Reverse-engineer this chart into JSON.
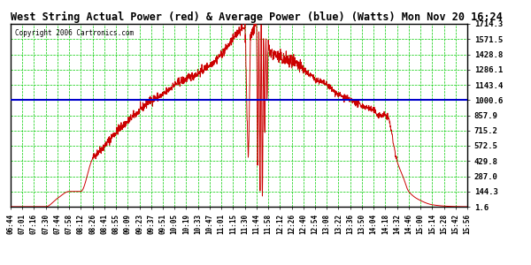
{
  "title": "West String Actual Power (red) & Average Power (blue) (Watts) Mon Nov 20 16:24",
  "copyright": "Copyright 2006 Cartronics.com",
  "bg_color": "#ffffff",
  "grid_color": "#00cc00",
  "line_color_actual": "#cc0000",
  "line_color_avg": "#0000cc",
  "avg_power": 1000.6,
  "yticks": [
    1.6,
    144.3,
    287.0,
    429.8,
    572.5,
    715.2,
    857.9,
    1000.6,
    1143.4,
    1286.1,
    1428.8,
    1571.5,
    1714.3
  ],
  "ylim": [
    1.6,
    1714.3
  ],
  "xtick_labels": [
    "06:44",
    "07:01",
    "07:16",
    "07:30",
    "07:44",
    "07:58",
    "08:12",
    "08:26",
    "08:41",
    "08:55",
    "09:09",
    "09:23",
    "09:37",
    "09:51",
    "10:05",
    "10:19",
    "10:33",
    "10:47",
    "11:01",
    "11:15",
    "11:30",
    "11:44",
    "11:58",
    "12:12",
    "12:26",
    "12:40",
    "12:54",
    "13:08",
    "13:22",
    "13:36",
    "13:50",
    "14:04",
    "14:18",
    "14:32",
    "14:46",
    "15:00",
    "15:14",
    "15:28",
    "15:42",
    "15:56"
  ]
}
